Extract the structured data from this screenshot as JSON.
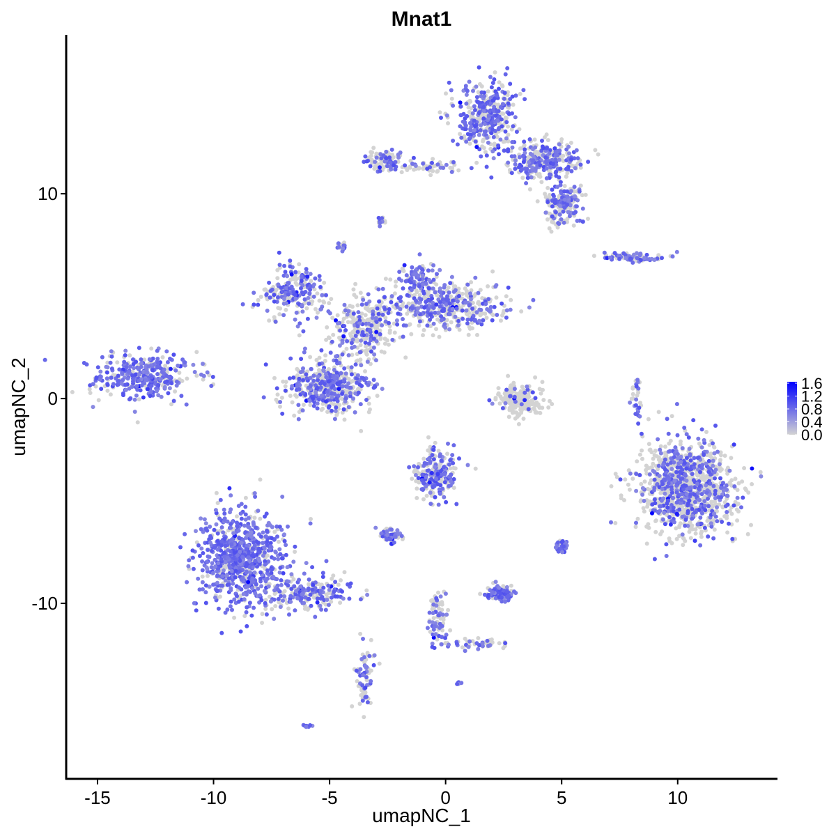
{
  "chart_data": {
    "type": "scatter",
    "title": "Mnat1",
    "xlabel": "umapNC_1",
    "ylabel": "umapNC_2",
    "xlim": [
      -16.35,
      14.3
    ],
    "ylim": [
      -18.57,
      17.76
    ],
    "xticks": [
      -15,
      -10,
      -5,
      0,
      5,
      10
    ],
    "yticks": [
      -10,
      0,
      10
    ],
    "xtick_labels": [
      "-15",
      "-10",
      "-5",
      "0",
      "5",
      "10"
    ],
    "ytick_labels": [
      "-10",
      "0",
      "10"
    ],
    "grid": false,
    "legend": {
      "placement": "right",
      "type": "colorbar",
      "range": [
        0.0,
        1.6
      ],
      "ticks": [
        "1.6",
        "1.2",
        "0.8",
        "0.4",
        "0.0"
      ],
      "low_color": "#D3D3D3",
      "high_color": "#0000FF"
    },
    "clusters": [
      {
        "center": [
          -12.9,
          1.1
        ],
        "spread": [
          1.3,
          0.7
        ],
        "n": 350,
        "expressing_fraction": 0.7
      },
      {
        "center": [
          -8.8,
          -7.8
        ],
        "spread": [
          1.2,
          1.5
        ],
        "n": 800,
        "expressing_fraction": 0.75
      },
      {
        "center": [
          -5.7,
          -9.5
        ],
        "spread": [
          1.1,
          0.5
        ],
        "n": 180,
        "expressing_fraction": 0.6
      },
      {
        "center": [
          -3.5,
          -13.5
        ],
        "spread": [
          0.25,
          1.1
        ],
        "n": 70,
        "expressing_fraction": 0.5
      },
      {
        "center": [
          -6.0,
          -16.0
        ],
        "spread": [
          0.1,
          0.05
        ],
        "n": 10,
        "expressing_fraction": 0.9
      },
      {
        "center": [
          -5.1,
          0.6
        ],
        "spread": [
          1.1,
          0.8
        ],
        "n": 450,
        "expressing_fraction": 0.5
      },
      {
        "center": [
          -6.6,
          5.2
        ],
        "spread": [
          0.8,
          0.8
        ],
        "n": 220,
        "expressing_fraction": 0.55
      },
      {
        "center": [
          -3.6,
          3.5
        ],
        "spread": [
          0.9,
          0.9
        ],
        "n": 280,
        "expressing_fraction": 0.3
      },
      {
        "center": [
          0.0,
          4.5
        ],
        "spread": [
          1.7,
          0.7
        ],
        "n": 420,
        "expressing_fraction": 0.45
      },
      {
        "center": [
          -1.2,
          5.9
        ],
        "spread": [
          0.5,
          0.55
        ],
        "n": 100,
        "expressing_fraction": 0.6
      },
      {
        "center": [
          1.8,
          13.7
        ],
        "spread": [
          0.8,
          1.1
        ],
        "n": 380,
        "expressing_fraction": 0.55
      },
      {
        "center": [
          4.2,
          11.6
        ],
        "spread": [
          1.0,
          0.55
        ],
        "n": 280,
        "expressing_fraction": 0.5
      },
      {
        "center": [
          5.0,
          9.6
        ],
        "spread": [
          0.55,
          0.65
        ],
        "n": 180,
        "expressing_fraction": 0.45
      },
      {
        "center": [
          -2.7,
          11.6
        ],
        "spread": [
          0.45,
          0.3
        ],
        "n": 100,
        "expressing_fraction": 0.4
      },
      {
        "center": [
          -0.6,
          11.3
        ],
        "spread": [
          1.0,
          0.2
        ],
        "n": 60,
        "expressing_fraction": 0.3
      },
      {
        "center": [
          8.1,
          6.9
        ],
        "spread": [
          1.0,
          0.15
        ],
        "n": 80,
        "expressing_fraction": 0.6
      },
      {
        "center": [
          10.4,
          -4.35
        ],
        "spread": [
          1.25,
          1.35
        ],
        "n": 1100,
        "expressing_fraction": 0.35
      },
      {
        "center": [
          3.2,
          -0.1
        ],
        "spread": [
          0.6,
          0.5
        ],
        "n": 200,
        "expressing_fraction": 0.1
      },
      {
        "center": [
          -0.4,
          -3.7
        ],
        "spread": [
          0.55,
          0.75
        ],
        "n": 230,
        "expressing_fraction": 0.5
      },
      {
        "center": [
          -2.4,
          -6.7
        ],
        "spread": [
          0.3,
          0.2
        ],
        "n": 60,
        "expressing_fraction": 0.7
      },
      {
        "center": [
          2.3,
          -9.5
        ],
        "spread": [
          0.4,
          0.25
        ],
        "n": 100,
        "expressing_fraction": 0.6
      },
      {
        "center": [
          -0.3,
          -10.8
        ],
        "spread": [
          0.25,
          0.9
        ],
        "n": 80,
        "expressing_fraction": 0.5
      },
      {
        "center": [
          1.5,
          -12.0
        ],
        "spread": [
          0.7,
          0.2
        ],
        "n": 50,
        "expressing_fraction": 0.3
      },
      {
        "center": [
          5.0,
          -7.2
        ],
        "spread": [
          0.15,
          0.2
        ],
        "n": 30,
        "expressing_fraction": 0.8
      },
      {
        "center": [
          8.2,
          0.0
        ],
        "spread": [
          0.15,
          0.8
        ],
        "n": 30,
        "expressing_fraction": 0.5
      },
      {
        "center": [
          -4.5,
          7.4
        ],
        "spread": [
          0.15,
          0.15
        ],
        "n": 20,
        "expressing_fraction": 0.6
      },
      {
        "center": [
          -2.8,
          8.7
        ],
        "spread": [
          0.1,
          0.15
        ],
        "n": 15,
        "expressing_fraction": 0.6
      },
      {
        "center": [
          0.55,
          -13.9
        ],
        "spread": [
          0.05,
          0.05
        ],
        "n": 8,
        "expressing_fraction": 0.8
      }
    ]
  }
}
